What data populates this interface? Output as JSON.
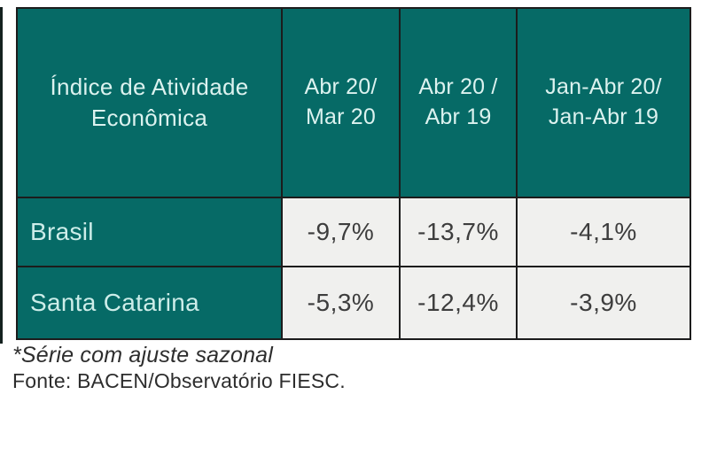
{
  "table": {
    "header": {
      "title_line1": "Índice de Atividade",
      "title_line2": "Econômica",
      "columns": [
        {
          "line1": "Abr 20/",
          "line2": "Mar 20"
        },
        {
          "line1": "Abr 20 /",
          "line2": "Abr 19"
        },
        {
          "line1": "Jan-Abr 20/",
          "line2": "Jan-Abr 19"
        }
      ]
    },
    "rows": [
      {
        "label": "Brasil",
        "values": [
          "-9,7%",
          "-13,7%",
          "-4,1%"
        ]
      },
      {
        "label": "Santa Catarina",
        "values": [
          "-5,3%",
          "-12,4%",
          "-3,9%"
        ]
      }
    ]
  },
  "footnotes": {
    "note": "*Série com ajuste sazonal",
    "source": "Fonte: BACEN/Observatório FIESC."
  },
  "colors": {
    "teal_header": "#066a66",
    "header_text": "#dcf2ef",
    "row_label_text": "#cdede9",
    "value_cell_bg": "#f0f0ee",
    "value_text": "#3d3d3d",
    "border": "#1c1c1c"
  },
  "chart_data": {
    "type": "table",
    "title": "Índice de Atividade Econômica",
    "columns": [
      "Índice de Atividade Econômica",
      "Abr 20/ Mar 20",
      "Abr 20 / Abr 19",
      "Jan-Abr 20/ Jan-Abr 19"
    ],
    "rows": [
      [
        "Brasil",
        "-9,7%",
        "-13,7%",
        "-4,1%"
      ],
      [
        "Santa Catarina",
        "-5,3%",
        "-12,4%",
        "-3,9%"
      ]
    ],
    "values_numeric_pct": {
      "Brasil": {
        "Abr20_Mar20": -9.7,
        "Abr20_Abr19": -13.7,
        "JanAbr20_JanAbr19": -4.1
      },
      "Santa Catarina": {
        "Abr20_Mar20": -5.3,
        "Abr20_Abr19": -12.4,
        "JanAbr20_JanAbr19": -3.9
      }
    },
    "notes": [
      "*Série com ajuste sazonal",
      "Fonte: BACEN/Observatório FIESC."
    ]
  }
}
